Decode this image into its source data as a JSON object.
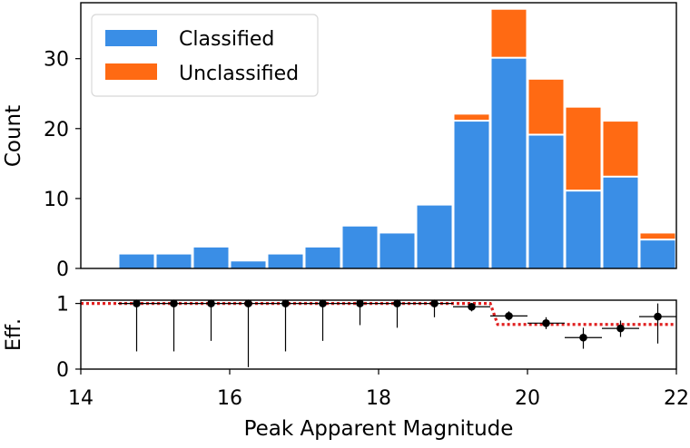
{
  "chart_data": [
    {
      "type": "bar",
      "stacked": true,
      "bin_edges": [
        14.5,
        15.0,
        15.5,
        16.0,
        16.5,
        17.0,
        17.5,
        18.0,
        18.5,
        19.0,
        19.5,
        20.0,
        20.5,
        21.0,
        21.5,
        22.0
      ],
      "series": [
        {
          "name": "Classified",
          "color": "#3a8ee6",
          "values": [
            2,
            2,
            3,
            1,
            2,
            3,
            6,
            5,
            9,
            21,
            30,
            19,
            11,
            13,
            4
          ]
        },
        {
          "name": "Unclassified",
          "color": "#ff6a13",
          "values": [
            0,
            0,
            0,
            0,
            0,
            0,
            0,
            0,
            0,
            1,
            7,
            8,
            12,
            8,
            1
          ]
        }
      ],
      "xlim": [
        14,
        22
      ],
      "ylim": [
        0,
        38
      ],
      "yticks": [
        0,
        10,
        20,
        30
      ],
      "ylabel": "Count",
      "legend_position": "top-left"
    },
    {
      "type": "scatter",
      "x": [
        14.75,
        15.25,
        15.75,
        16.25,
        16.75,
        17.25,
        17.75,
        18.25,
        18.75,
        19.25,
        19.75,
        20.25,
        20.75,
        21.25,
        21.75
      ],
      "y": [
        1.0,
        1.0,
        1.0,
        1.0,
        1.0,
        1.0,
        1.0,
        1.0,
        1.0,
        0.95,
        0.81,
        0.7,
        0.48,
        0.62,
        0.8
      ],
      "y_err_low": [
        0.73,
        0.73,
        0.57,
        0.97,
        0.73,
        0.57,
        0.33,
        0.37,
        0.21,
        0.07,
        0.07,
        0.09,
        0.17,
        0.13,
        0.41
      ],
      "y_err_high": [
        0,
        0,
        0,
        0,
        0,
        0,
        0,
        0,
        0,
        0.03,
        0.07,
        0.09,
        0.15,
        0.12,
        0.2
      ],
      "x_err": 0.25,
      "reference_line": {
        "style": "red dotted step",
        "color": "#e02020",
        "x": [
          14,
          19.5,
          19.6,
          22
        ],
        "y": [
          1.0,
          1.0,
          0.68,
          0.68
        ]
      },
      "xlim": [
        14,
        22
      ],
      "ylim": [
        0,
        1.05
      ],
      "yticks": [
        0,
        1
      ],
      "xticks": [
        14,
        16,
        18,
        20,
        22
      ],
      "ylabel": "Eff.",
      "xlabel": "Peak Apparent Magnitude"
    }
  ]
}
